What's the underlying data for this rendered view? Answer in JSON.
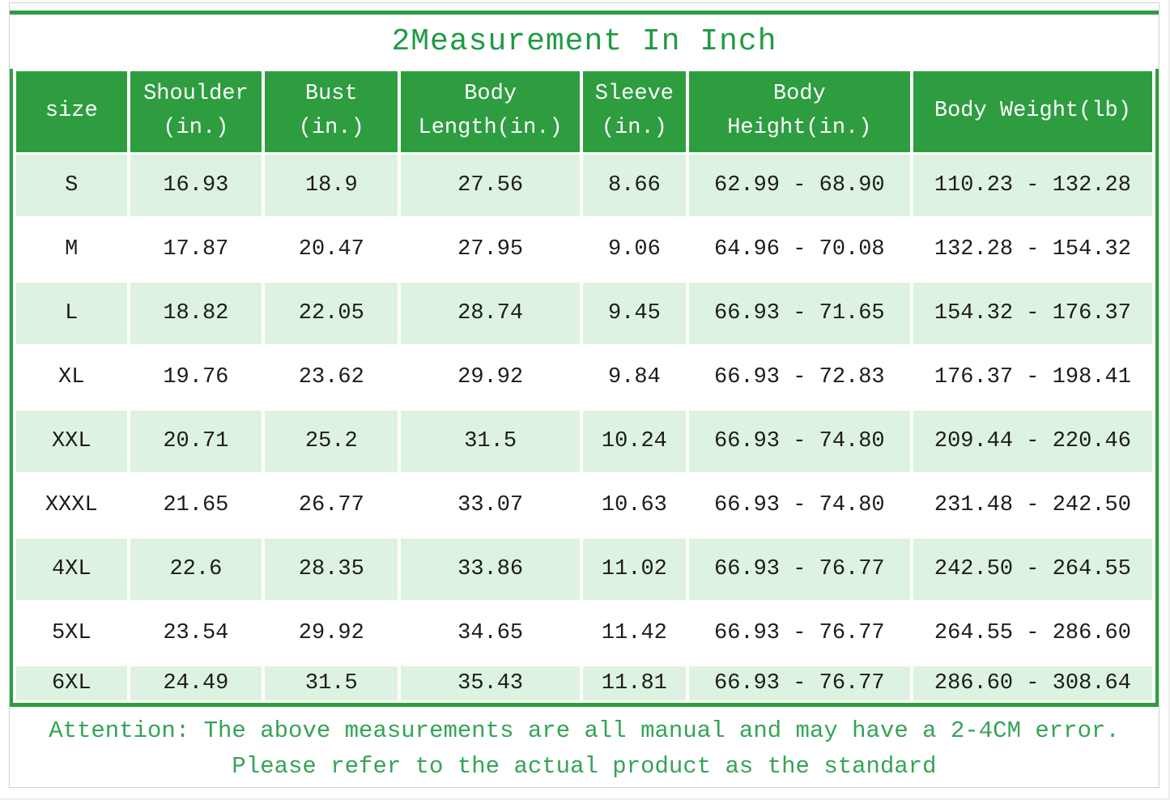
{
  "title": "2Measurement In Inch",
  "colors": {
    "header_green": "#2e9d40",
    "row_light_green": "#ddf2e0",
    "title_green": "#1e9b44",
    "footer_green": "#35a455"
  },
  "table": {
    "columns": [
      {
        "id": "size",
        "label": "size"
      },
      {
        "id": "shoulder",
        "label": "Shoulder\n(in.)"
      },
      {
        "id": "bust",
        "label": "Bust\n(in.)"
      },
      {
        "id": "body_length",
        "label": "Body\nLength(in.)"
      },
      {
        "id": "sleeve",
        "label": "Sleeve\n(in.)"
      },
      {
        "id": "body_height",
        "label": "Body\nHeight(in.)"
      },
      {
        "id": "body_weight",
        "label": "Body Weight(lb)"
      }
    ],
    "rows": [
      [
        "S",
        "16.93",
        "18.9",
        "27.56",
        "8.66",
        "62.99 - 68.90",
        "110.23 - 132.28"
      ],
      [
        "M",
        "17.87",
        "20.47",
        "27.95",
        "9.06",
        "64.96 - 70.08",
        "132.28 - 154.32"
      ],
      [
        "L",
        "18.82",
        "22.05",
        "28.74",
        "9.45",
        "66.93 - 71.65",
        "154.32 - 176.37"
      ],
      [
        "XL",
        "19.76",
        "23.62",
        "29.92",
        "9.84",
        "66.93 - 72.83",
        "176.37 - 198.41"
      ],
      [
        "XXL",
        "20.71",
        "25.2",
        "31.5",
        "10.24",
        "66.93 - 74.80",
        "209.44 - 220.46"
      ],
      [
        "XXXL",
        "21.65",
        "26.77",
        "33.07",
        "10.63",
        "66.93 - 74.80",
        "231.48 - 242.50"
      ],
      [
        "4XL",
        "22.6",
        "28.35",
        "33.86",
        "11.02",
        "66.93 - 76.77",
        "242.50 - 264.55"
      ],
      [
        "5XL",
        "23.54",
        "29.92",
        "34.65",
        "11.42",
        "66.93 - 76.77",
        "264.55 - 286.60"
      ],
      [
        "6XL",
        "24.49",
        "31.5",
        "35.43",
        "11.81",
        "66.93 - 76.77",
        "286.60 - 308.64"
      ]
    ]
  },
  "footer": {
    "line1": "Attention: The above measurements are all manual and may have a 2-4CM error.",
    "line2": "Please refer to the actual product as the standard"
  }
}
